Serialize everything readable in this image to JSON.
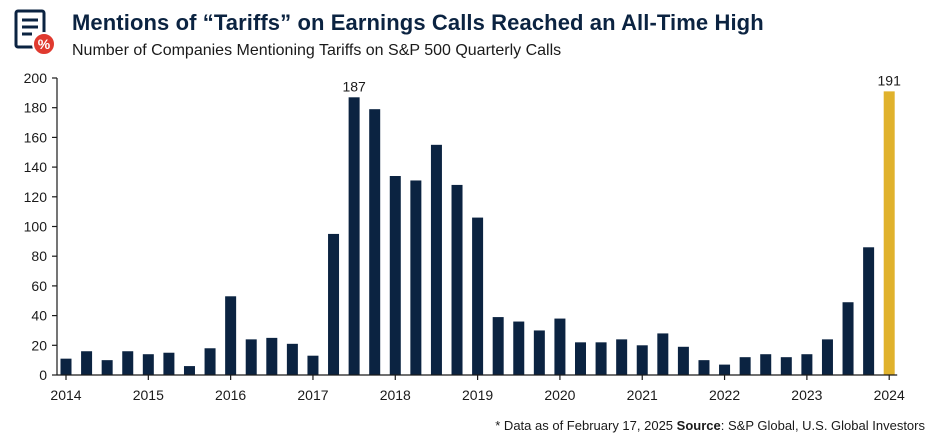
{
  "header": {
    "title": "Mentions of “Tariffs” on Earnings Calls Reached an All-Time High",
    "subtitle": "Number of Companies Mentioning Tariffs on S&P 500 Quarterly Calls",
    "logo_icon": "document-percent-icon"
  },
  "footer": {
    "note": "* Data as of February 17, 2025",
    "source_label": "Source",
    "source_text": ": S&P Global, U.S. Global Investors"
  },
  "colors": {
    "bar": "#0b2341",
    "highlight": "#e0b22c",
    "text": "#0b2341"
  },
  "chart_data": {
    "type": "bar",
    "title": "Mentions of “Tariffs” on Earnings Calls Reached an All-Time High",
    "subtitle": "Number of Companies Mentioning Tariffs on S&P 500 Quarterly Calls",
    "xlabel": "",
    "ylabel": "",
    "ylim": [
      0,
      200
    ],
    "yticks": [
      0,
      20,
      40,
      60,
      80,
      100,
      120,
      140,
      160,
      180,
      200
    ],
    "grid": false,
    "year_labels": [
      "2014",
      "2015",
      "2016",
      "2017",
      "2018",
      "2019",
      "2020",
      "2021",
      "2022",
      "2023",
      "2024"
    ],
    "values": [
      11,
      16,
      10,
      16,
      14,
      15,
      6,
      18,
      53,
      24,
      25,
      21,
      13,
      95,
      187,
      179,
      134,
      131,
      155,
      128,
      106,
      39,
      36,
      30,
      38,
      22,
      22,
      24,
      20,
      28,
      19,
      10,
      7,
      12,
      14,
      12,
      14,
      24,
      49,
      86,
      191
    ],
    "highlight_index": 40,
    "data_labels": [
      {
        "index": 14,
        "text": "187"
      },
      {
        "index": 40,
        "text": "191"
      }
    ]
  }
}
